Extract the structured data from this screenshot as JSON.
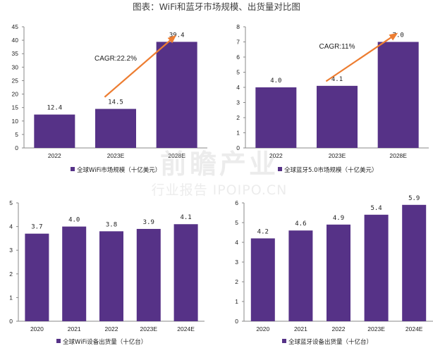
{
  "figure_title": "图表：WiFi和蓝牙市场规模、出货量对比图",
  "watermark": {
    "main": "前瞻产业",
    "sub": "行业报告 IPOIPO.CN"
  },
  "colors": {
    "bar": "#563287",
    "arrow": "#ed7d31",
    "axis": "#888888"
  },
  "chart_data": [
    {
      "type": "bar",
      "categories": [
        "2022",
        "2023E",
        "2028E"
      ],
      "values": [
        12.4,
        14.5,
        39.4
      ],
      "value_labels": [
        "12.4",
        "14.5",
        "39.4"
      ],
      "ylim": [
        0,
        45
      ],
      "yticks": [
        0,
        5,
        10,
        15,
        20,
        25,
        30,
        35,
        40,
        45
      ],
      "legend": "全球WiFi市场规模（十亿美元）",
      "annotation": "CAGR:22.2%",
      "grid": false
    },
    {
      "type": "bar",
      "categories": [
        "2022",
        "2023E",
        "2028E"
      ],
      "values": [
        4.0,
        4.1,
        7.0
      ],
      "value_labels": [
        "4.0",
        "4.1",
        "7.0"
      ],
      "ylim": [
        0,
        8
      ],
      "yticks": [
        0,
        1,
        2,
        3,
        4,
        5,
        6,
        7,
        8
      ],
      "legend": "全球蓝牙5.0市场规模（十亿美元）",
      "annotation": "CAGR:11%",
      "grid": false
    },
    {
      "type": "bar",
      "categories": [
        "2020",
        "2021",
        "2022",
        "2023E",
        "2024E"
      ],
      "values": [
        3.7,
        4.0,
        3.8,
        3.9,
        4.1
      ],
      "value_labels": [
        "3.7",
        "4.0",
        "3.8",
        "3.9",
        "4.1"
      ],
      "ylim": [
        0,
        5
      ],
      "yticks": [
        0,
        1,
        2,
        3,
        4,
        5
      ],
      "legend": "全球WiFi设备出货量（十亿台）",
      "grid": false
    },
    {
      "type": "bar",
      "categories": [
        "2020",
        "2021",
        "2022",
        "2023E",
        "2024E"
      ],
      "values": [
        4.2,
        4.6,
        4.9,
        5.4,
        5.9
      ],
      "value_labels": [
        "4.2",
        "4.6",
        "4.9",
        "5.4",
        "5.9"
      ],
      "ylim": [
        0,
        6
      ],
      "yticks": [
        0,
        1,
        2,
        3,
        4,
        5,
        6
      ],
      "legend": "全球蓝牙设备出货量（十亿台）",
      "grid": false
    }
  ]
}
